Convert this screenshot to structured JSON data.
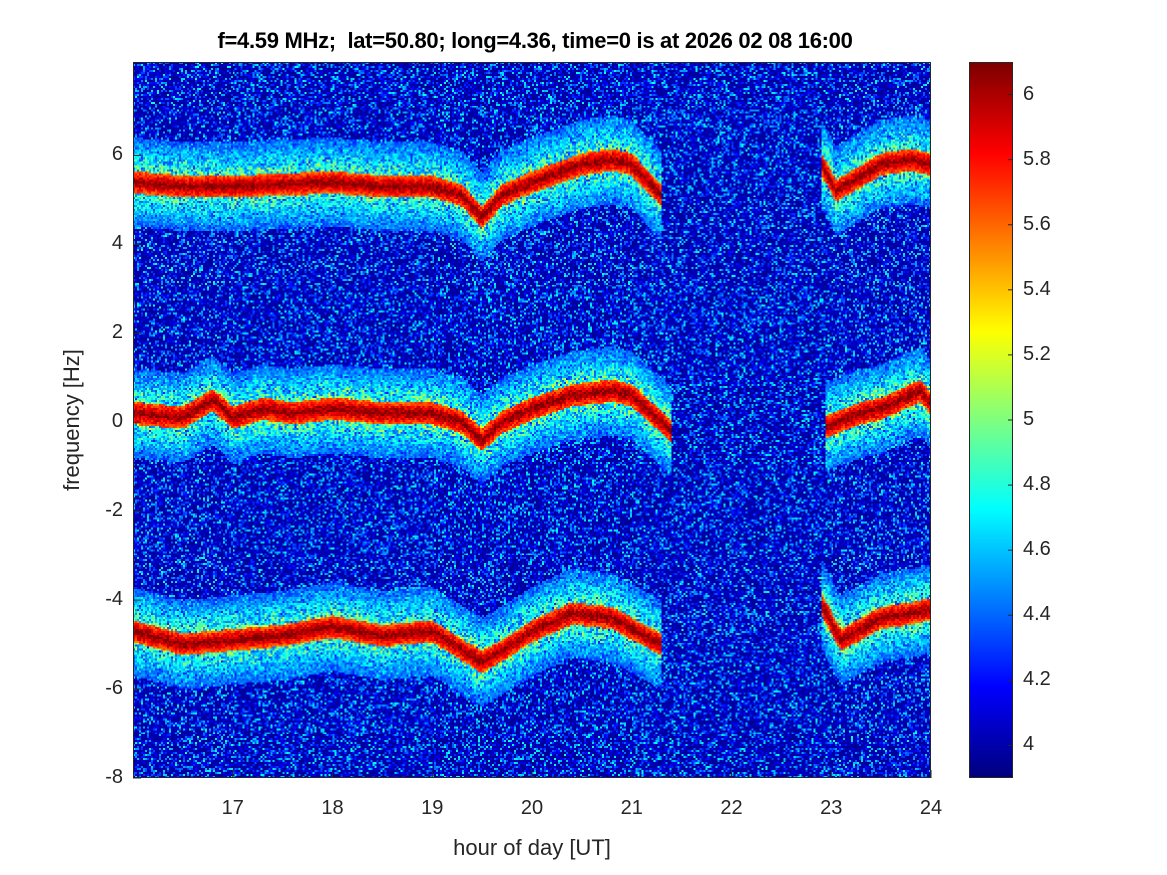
{
  "chart_data": {
    "type": "heatmap",
    "title": "f=4.59 MHz;  lat=50.80; long=4.36, time=0 is at 2026 02 08 16:00",
    "xlabel": "hour of day [UT]",
    "ylabel": "frequency [Hz]",
    "xlim": [
      16,
      24
    ],
    "ylim": [
      -8,
      8.1
    ],
    "xticks": [
      17,
      18,
      19,
      20,
      21,
      22,
      23,
      24
    ],
    "yticks": [
      -8,
      -6,
      -4,
      -2,
      0,
      2,
      4,
      6
    ],
    "colormap": "jet",
    "clim": [
      3.9,
      6.1
    ],
    "colorbar_ticks": [
      4,
      4.2,
      4.4,
      4.6,
      4.8,
      5,
      5.2,
      5.4,
      5.6,
      5.8,
      6
    ],
    "traces": [
      {
        "name": "upper",
        "points": [
          [
            16,
            5.4
          ],
          [
            16.5,
            5.3
          ],
          [
            17,
            5.3
          ],
          [
            17.5,
            5.35
          ],
          [
            18,
            5.4
          ],
          [
            18.5,
            5.3
          ],
          [
            19,
            5.3
          ],
          [
            19.3,
            5.1
          ],
          [
            19.5,
            4.6
          ],
          [
            19.7,
            5.1
          ],
          [
            20,
            5.4
          ],
          [
            20.5,
            5.8
          ],
          [
            20.8,
            5.9
          ],
          [
            21,
            5.8
          ],
          [
            21.3,
            5.1
          ]
        ]
      },
      {
        "name": "upper-late",
        "points": [
          [
            22.9,
            5.8
          ],
          [
            23.05,
            5.2
          ],
          [
            23.5,
            5.8
          ],
          [
            23.8,
            5.9
          ],
          [
            24,
            5.8
          ]
        ]
      },
      {
        "name": "middle",
        "points": [
          [
            16,
            0.2
          ],
          [
            16.5,
            0.1
          ],
          [
            16.8,
            0.5
          ],
          [
            17,
            0.1
          ],
          [
            17.3,
            0.3
          ],
          [
            17.6,
            0.2
          ],
          [
            18,
            0.3
          ],
          [
            18.5,
            0.2
          ],
          [
            19,
            0.2
          ],
          [
            19.3,
            0
          ],
          [
            19.5,
            -0.4
          ],
          [
            19.7,
            0
          ],
          [
            20,
            0.3
          ],
          [
            20.4,
            0.6
          ],
          [
            20.8,
            0.7
          ],
          [
            21,
            0.6
          ],
          [
            21.2,
            0.2
          ],
          [
            21.4,
            -0.2
          ]
        ]
      },
      {
        "name": "middle-late",
        "points": [
          [
            22.95,
            -0.1
          ],
          [
            23.3,
            0.2
          ],
          [
            23.5,
            0.3
          ],
          [
            23.7,
            0.5
          ],
          [
            23.9,
            0.7
          ],
          [
            24,
            0.4
          ]
        ]
      },
      {
        "name": "lower",
        "points": [
          [
            16,
            -4.7
          ],
          [
            16.5,
            -5
          ],
          [
            17,
            -4.9
          ],
          [
            17.5,
            -4.8
          ],
          [
            18,
            -4.6
          ],
          [
            18.5,
            -4.8
          ],
          [
            19,
            -4.7
          ],
          [
            19.5,
            -5.4
          ],
          [
            19.8,
            -5.0
          ],
          [
            20,
            -4.7
          ],
          [
            20.4,
            -4.3
          ],
          [
            20.8,
            -4.4
          ],
          [
            21.3,
            -5.0
          ]
        ]
      },
      {
        "name": "lower-late",
        "points": [
          [
            22.9,
            -4.1
          ],
          [
            23.1,
            -4.9
          ],
          [
            23.5,
            -4.4
          ],
          [
            23.8,
            -4.3
          ],
          [
            24,
            -4.2
          ]
        ]
      }
    ],
    "background_level": 4.1
  }
}
